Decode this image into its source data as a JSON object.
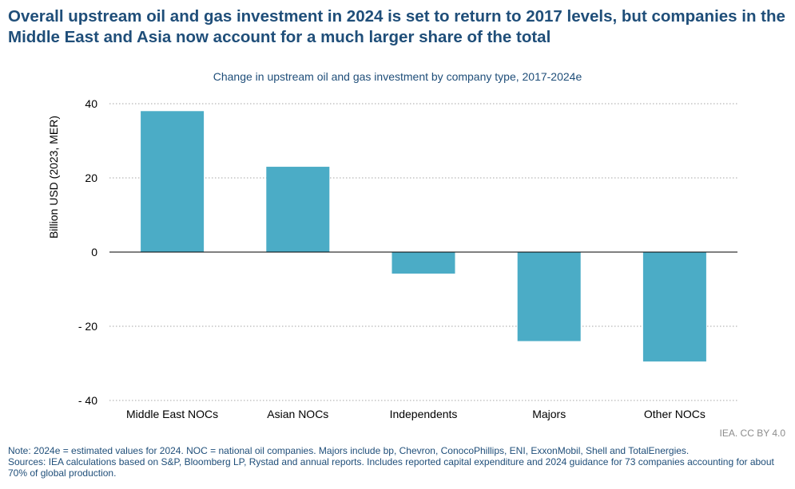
{
  "headline": "Overall upstream oil and gas investment in 2024 is set to return to 2017 levels, but companies in the Middle East and Asia now account for a much larger share of the total",
  "credit": "IEA. CC BY 4.0",
  "notes": {
    "note": "Note: 2024e = estimated values for 2024. NOC = national oil companies. Majors include bp, Chevron, ConocoPhillips, ENI, ExxonMobil, Shell and TotalEnergies.",
    "sources": "Sources: IEA calculations based on S&P, Bloomberg LP, Rystad and annual reports. Includes reported capital expenditure and 2024 guidance for 73 companies accounting for about 70% of global production."
  },
  "colors": {
    "bar": "#4bacc6",
    "text": "#1f4e79",
    "grid": "#a6a6a6"
  },
  "chart_data": {
    "type": "bar",
    "title": "Change in upstream oil and gas investment by company type, 2017-2024e",
    "xlabel": "",
    "ylabel": "Billion USD (2023, MER)",
    "categories": [
      "Middle East NOCs",
      "Asian NOCs",
      "Independents",
      "Majors",
      "Other NOCs"
    ],
    "values": [
      38,
      23,
      -5.8,
      -24,
      -29.5
    ],
    "ylim": [
      -40,
      40
    ],
    "yticks": [
      40,
      20,
      0,
      -20,
      -40
    ],
    "ytick_labels": [
      "40",
      "20",
      "0",
      "- 20",
      "- 40"
    ],
    "grid": true,
    "legend": "none"
  }
}
